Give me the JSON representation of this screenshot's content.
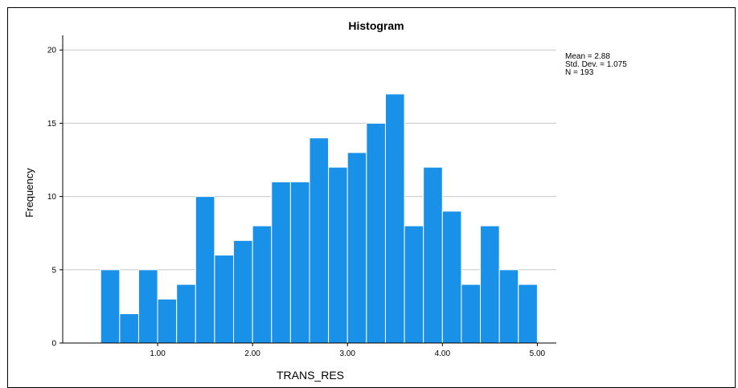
{
  "chart_data": {
    "type": "bar",
    "title": "Histogram",
    "xlabel": "TRANS_RES",
    "ylabel": "Frequency",
    "bin_start": 0.4,
    "bin_width": 0.2,
    "values": [
      5,
      2,
      5,
      3,
      4,
      10,
      6,
      7,
      8,
      11,
      11,
      14,
      12,
      13,
      15,
      17,
      8,
      12,
      9,
      4,
      8,
      5,
      4
    ],
    "xlim": [
      0.0,
      5.2
    ],
    "ylim": [
      0,
      21
    ],
    "x_ticks": [
      1,
      2,
      3,
      4,
      5
    ],
    "x_tick_labels": [
      "1.00",
      "2.00",
      "3.00",
      "4.00",
      "5.00"
    ],
    "y_ticks": [
      0,
      5,
      10,
      15,
      20
    ],
    "y_tick_labels": [
      "0",
      "5",
      "10",
      "15",
      "20"
    ],
    "grid": "horizontal",
    "bar_color": "#1a91e8",
    "bar_edge_color": "#ffffff",
    "grid_color": "#c8c8c8",
    "stats": [
      "Mean = 2.88",
      "Std. Dev. = 1.075",
      "N = 193"
    ],
    "stats_placement": "top-right"
  }
}
